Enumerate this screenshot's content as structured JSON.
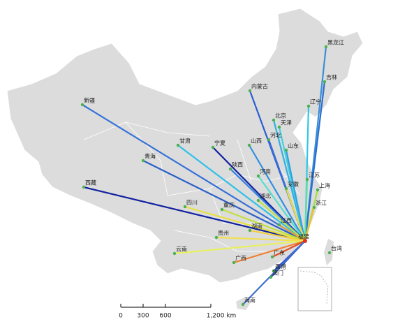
{
  "map": {
    "hub": "福建",
    "provinces": [
      "黑龙江",
      "吉林",
      "辽宁",
      "内蒙古",
      "新疆",
      "北京",
      "天津",
      "河北",
      "山西",
      "山东",
      "甘肃",
      "宁夏",
      "青海",
      "陕西",
      "河南",
      "江苏",
      "上海",
      "安徽",
      "湖北",
      "浙江",
      "西藏",
      "四川",
      "重庆",
      "湖南",
      "江西",
      "贵州",
      "云南",
      "广西",
      "广东",
      "台湾",
      "香港",
      "澳门",
      "海南"
    ],
    "scale_bar": {
      "labels": [
        "0",
        "300",
        "600",
        "1,200 km"
      ]
    }
  }
}
